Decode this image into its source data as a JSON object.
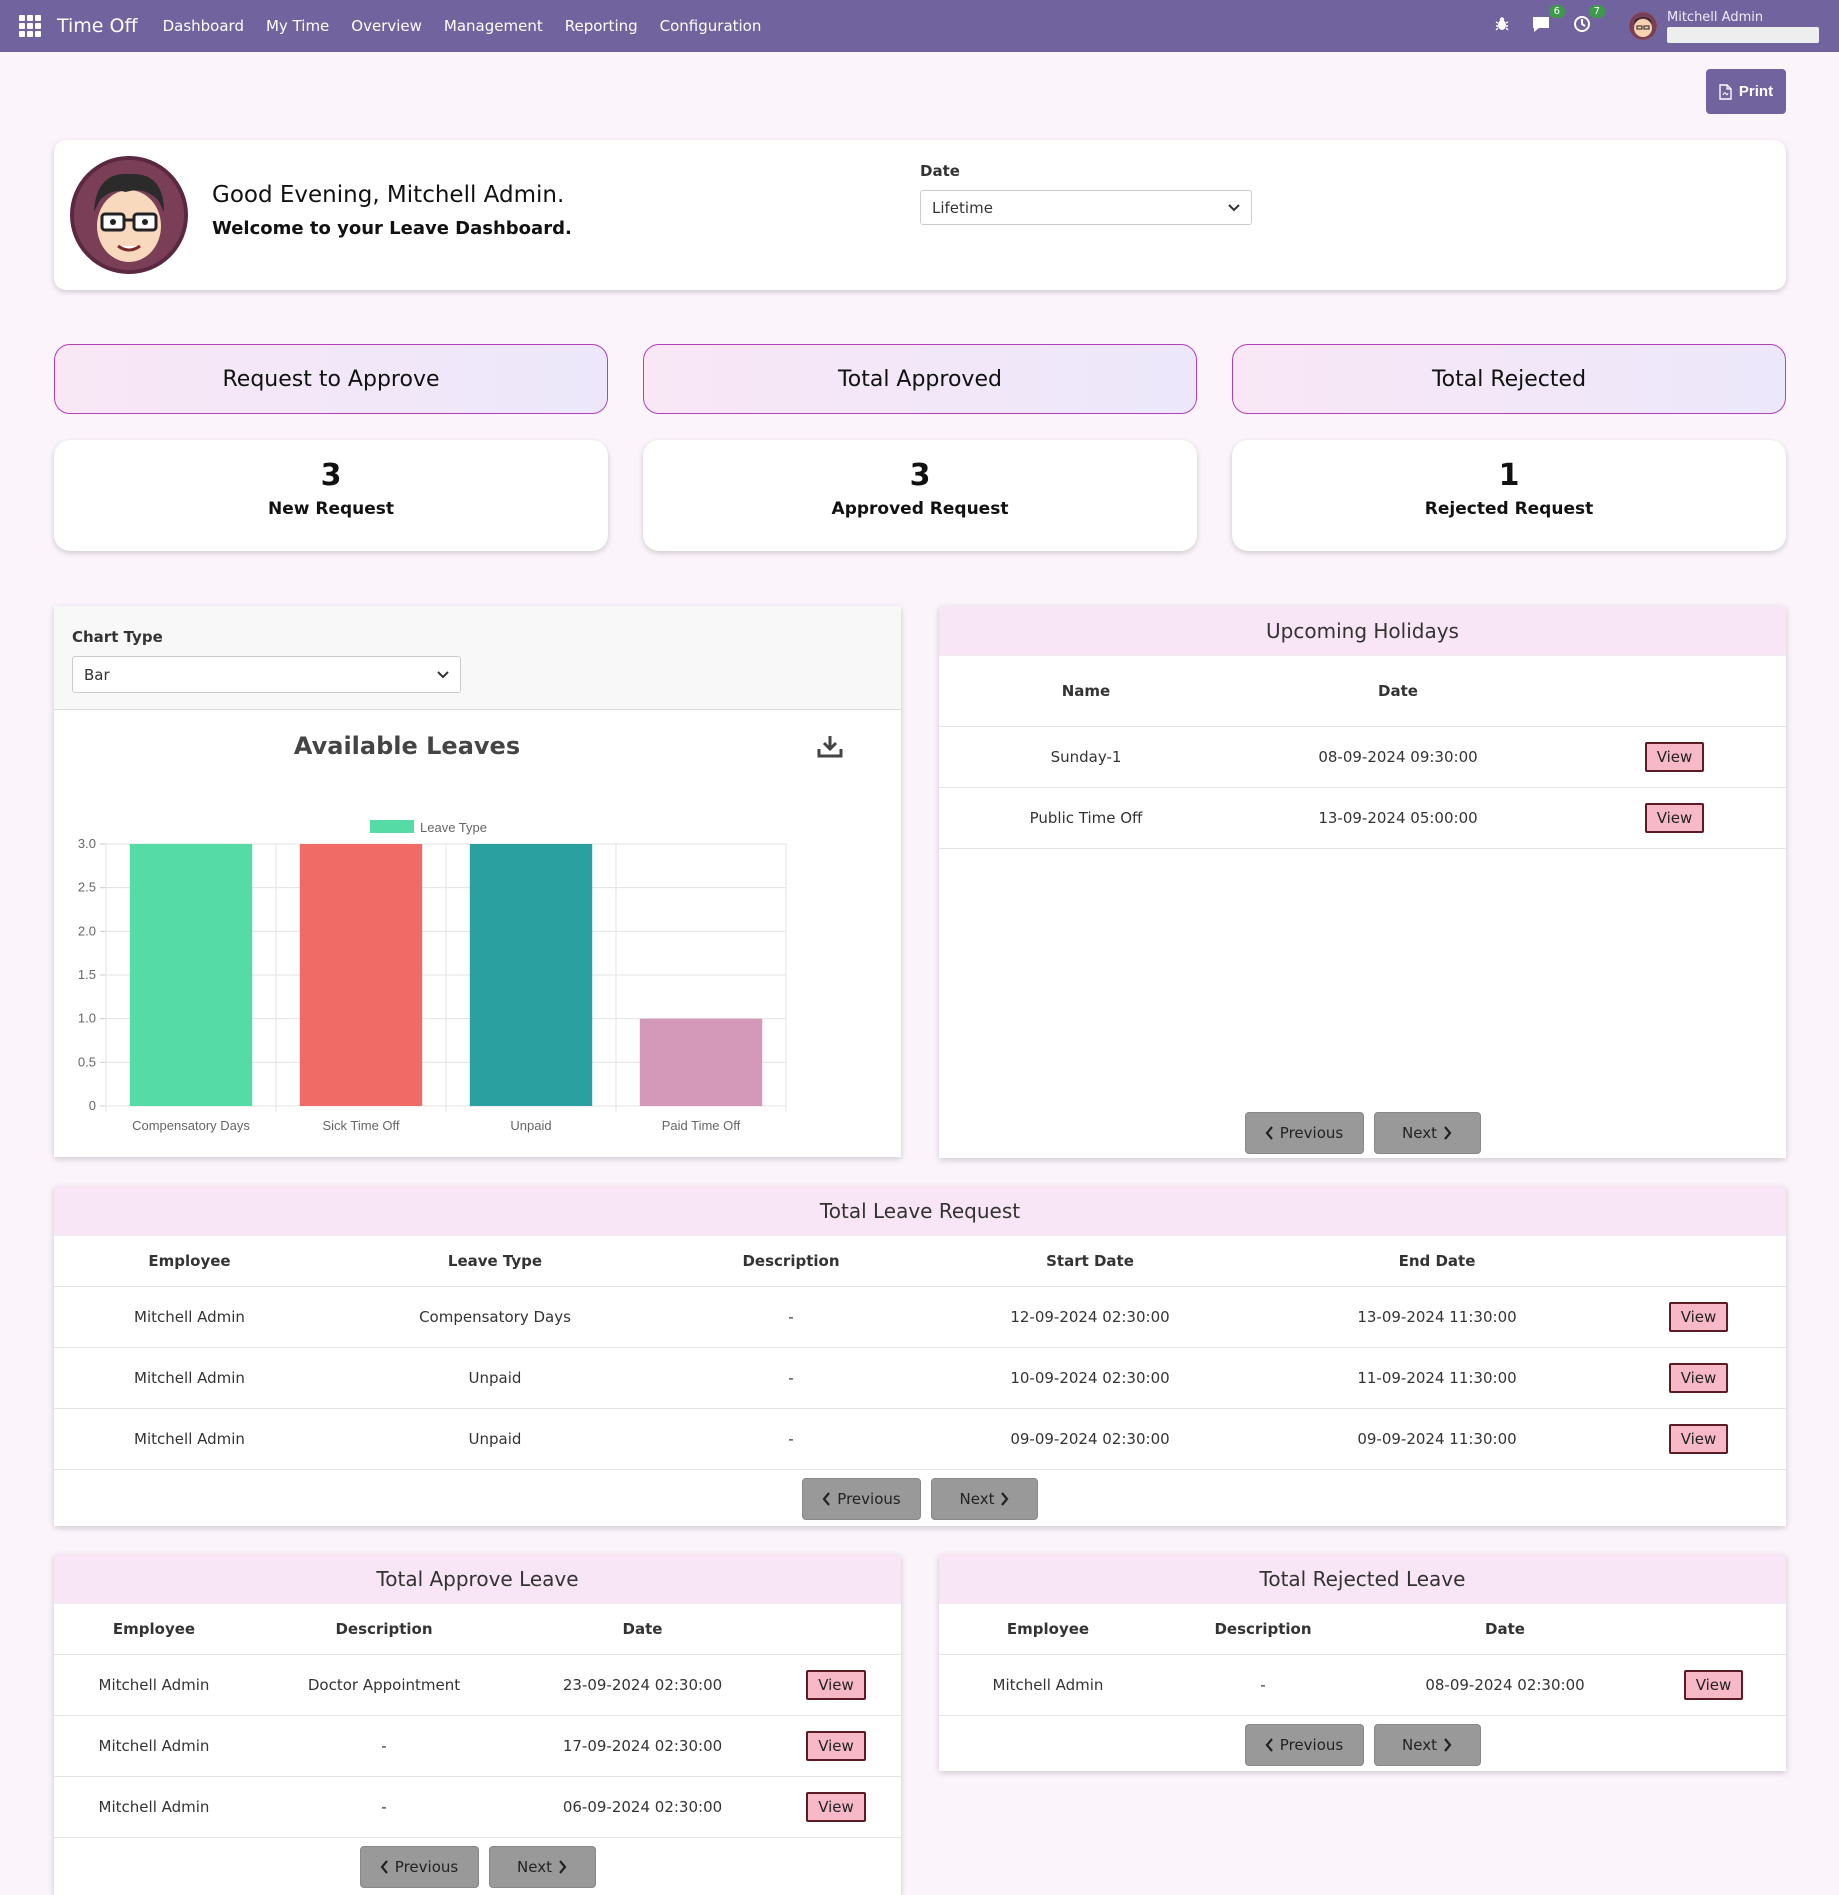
{
  "navbar": {
    "app_name": "Time Off",
    "menu": [
      "Dashboard",
      "My Time",
      "Overview",
      "Management",
      "Reporting",
      "Configuration"
    ],
    "chat_badge": "6",
    "activity_badge": "7",
    "user_name": "Mitchell Admin"
  },
  "print_label": "Print",
  "greeting": {
    "title": "Good Evening, Mitchell Admin.",
    "subtitle": "Welcome to your Leave Dashboard.",
    "date_label": "Date",
    "date_value": "Lifetime"
  },
  "stats": [
    {
      "heading": "Request to Approve",
      "value": "3",
      "label": "New Request"
    },
    {
      "heading": "Total Approved",
      "value": "3",
      "label": "Approved Request"
    },
    {
      "heading": "Total Rejected",
      "value": "1",
      "label": "Rejected Request"
    }
  ],
  "chart_panel": {
    "chart_type_label": "Chart Type",
    "chart_type_value": "Bar"
  },
  "chart_data": {
    "type": "bar",
    "title": "Available Leaves",
    "legend": "Leave Type",
    "legend_position": "top",
    "categories": [
      "Compensatory Days",
      "Sick Time Off",
      "Unpaid",
      "Paid Time Off"
    ],
    "values": [
      3,
      3,
      3,
      1
    ],
    "colors": [
      "#55dba5",
      "#f06b66",
      "#2aa1a0",
      "#d498b8"
    ],
    "yticks": [
      "0",
      "0.5",
      "1.0",
      "1.5",
      "2.0",
      "2.5",
      "3.0"
    ],
    "ylim": [
      0,
      3
    ],
    "grid": true
  },
  "holidays": {
    "title": "Upcoming Holidays",
    "columns": [
      "Name",
      "Date"
    ],
    "rows": [
      {
        "name": "Sunday-1",
        "date": "08-09-2024 09:30:00"
      },
      {
        "name": "Public Time Off",
        "date": "13-09-2024 05:00:00"
      }
    ]
  },
  "leave_requests": {
    "title": "Total Leave Request",
    "columns": [
      "Employee",
      "Leave Type",
      "Description",
      "Start Date",
      "End Date"
    ],
    "rows": [
      {
        "employee": "Mitchell Admin",
        "type": "Compensatory Days",
        "description": "-",
        "start": "12-09-2024 02:30:00",
        "end": "13-09-2024 11:30:00"
      },
      {
        "employee": "Mitchell Admin",
        "type": "Unpaid",
        "description": "-",
        "start": "10-09-2024 02:30:00",
        "end": "11-09-2024 11:30:00"
      },
      {
        "employee": "Mitchell Admin",
        "type": "Unpaid",
        "description": "-",
        "start": "09-09-2024 02:30:00",
        "end": "09-09-2024 11:30:00"
      }
    ]
  },
  "approved": {
    "title": "Total Approve Leave",
    "columns": [
      "Employee",
      "Description",
      "Date"
    ],
    "rows": [
      {
        "employee": "Mitchell Admin",
        "description": "Doctor Appointment",
        "date": "23-09-2024 02:30:00"
      },
      {
        "employee": "Mitchell Admin",
        "description": "-",
        "date": "17-09-2024 02:30:00"
      },
      {
        "employee": "Mitchell Admin",
        "description": "-",
        "date": "06-09-2024 02:30:00"
      }
    ]
  },
  "rejected": {
    "title": "Total Rejected Leave",
    "columns": [
      "Employee",
      "Description",
      "Date"
    ],
    "rows": [
      {
        "employee": "Mitchell Admin",
        "description": "-",
        "date": "08-09-2024 02:30:00"
      }
    ]
  },
  "buttons": {
    "view": "View",
    "previous": "Previous",
    "next": "Next"
  }
}
